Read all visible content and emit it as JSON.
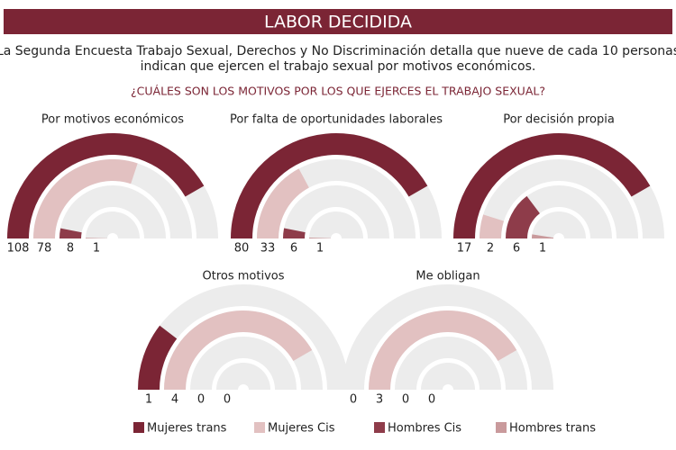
{
  "header": {
    "title": "LABOR DECIDIDA"
  },
  "intro": [
    "La Segunda Encuesta Trabajo Sexual, Derechos y No Discriminación detalla que nueve de cada 10 personas",
    "indican que ejercen el trabajo sexual por motivos económicos."
  ],
  "question": "¿CUÁLES SON LOS MOTIVOS POR LOS QUE EJERCES EL TRABAJO SEXUAL?",
  "legend": [
    {
      "name": "Mujeres trans",
      "color": "#7b2535"
    },
    {
      "name": "Mujeres Cis",
      "color": "#e2c1c1"
    },
    {
      "name": "Hombres Cis",
      "color": "#8e3c4a"
    },
    {
      "name": "Hombres trans",
      "color": "#c99a9c"
    }
  ],
  "chart_data": [
    {
      "type": "radial-bar",
      "title": "Por motivos económicos",
      "values": [
        108,
        78,
        8,
        1
      ]
    },
    {
      "type": "radial-bar",
      "title": "Por falta de oportunidades laborales",
      "values": [
        80,
        33,
        6,
        1
      ]
    },
    {
      "type": "radial-bar",
      "title": "Por decisión propia",
      "values": [
        17,
        2,
        6,
        1
      ]
    },
    {
      "type": "radial-bar",
      "title": "Otros motivos",
      "values": [
        1,
        4,
        0,
        0
      ]
    },
    {
      "type": "radial-bar",
      "title": "Me obligan",
      "values": [
        0,
        3,
        0,
        0
      ]
    }
  ]
}
